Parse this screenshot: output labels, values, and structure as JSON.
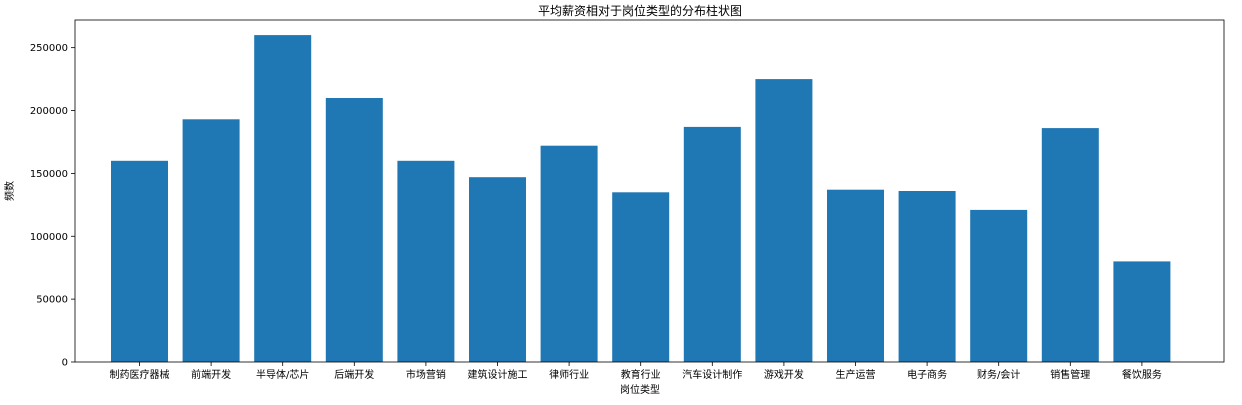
{
  "chart_data": {
    "type": "bar",
    "title": "平均薪资相对于岗位类型的分布柱状图",
    "xlabel": "岗位类型",
    "ylabel": "频数",
    "categories": [
      "制药医疗器械",
      "前端开发",
      "半导体/芯片",
      "后端开发",
      "市场营销",
      "建筑设计施工",
      "律师行业",
      "教育行业",
      "汽车设计制作",
      "游戏开发",
      "生产运营",
      "电子商务",
      "财务/会计",
      "销售管理",
      "餐饮服务"
    ],
    "values": [
      160000,
      193000,
      260000,
      210000,
      160000,
      147000,
      172000,
      135000,
      187000,
      225000,
      137000,
      136000,
      121000,
      186000,
      80000
    ],
    "ylim": [
      0,
      272000
    ],
    "yticks": [
      0,
      50000,
      100000,
      150000,
      200000,
      250000
    ],
    "grid": false,
    "color": "#1f77b4"
  }
}
